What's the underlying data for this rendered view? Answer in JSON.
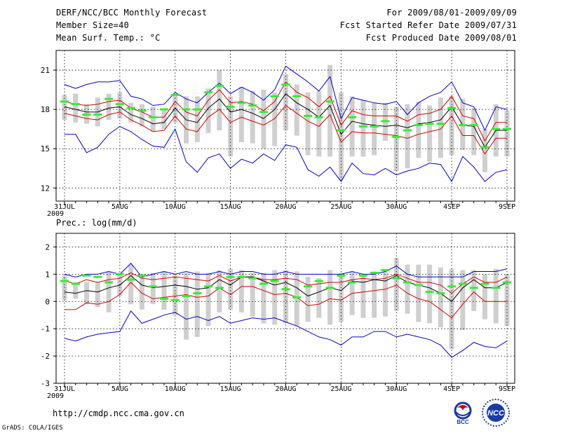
{
  "header": {
    "title": "DERF/NCC/BCC Monthly Forecast",
    "member_size": "Member Size=40",
    "variable": "Mean Surf. Temp.: °C",
    "forecast_period": "For 2009/08/01-2009/09/09",
    "start_date": "Fcst Started Refer Date 2009/07/31",
    "produced_date": "Fcst Produced Date 2009/08/01"
  },
  "footer": {
    "url": "http://cmdp.ncc.cma.gov.cn",
    "credit": "GrADS: COLA/IGES",
    "logo_left": "BCC",
    "logo_right": "NCC"
  },
  "colors": {
    "envelope": "#0000cc",
    "spread": "#d40000",
    "mean": "#000000",
    "obs": "#33ee33",
    "box": "#cfcfcf"
  },
  "chart_data": [
    {
      "type": "line",
      "title": "Mean Surf. Temp.: °C",
      "x_tick_labels": [
        "31JUL",
        "5AUG",
        "10AUG",
        "15AUG",
        "20AUG",
        "25AUG",
        "30AUG",
        "4SEP",
        "9SEP"
      ],
      "x_tick_index": [
        0,
        5,
        10,
        15,
        20,
        25,
        30,
        35,
        40
      ],
      "year_label": "2009",
      "ylim": [
        11,
        22.5
      ],
      "y_ticks": [
        12,
        15,
        18,
        21
      ],
      "grid": true,
      "series": [
        {
          "name": "max",
          "values": [
            19.9,
            19.6,
            19.9,
            20.1,
            20.1,
            20.2,
            19.0,
            18.8,
            18.3,
            18.4,
            19.3,
            18.8,
            18.5,
            19.3,
            20.0,
            19.2,
            19.7,
            19.3,
            18.7,
            19.5,
            21.3,
            20.7,
            20.1,
            19.4,
            20.5,
            17.3,
            18.9,
            18.7,
            18.5,
            18.4,
            18.6,
            17.6,
            18.5,
            19.0,
            19.3,
            20.1,
            18.5,
            18.2,
            16.4,
            18.2,
            18.0
          ]
        },
        {
          "name": "upper",
          "values": [
            18.6,
            18.4,
            18.3,
            18.4,
            18.6,
            18.7,
            18.1,
            17.8,
            17.4,
            17.4,
            18.6,
            17.8,
            17.5,
            18.7,
            19.5,
            18.5,
            18.6,
            18.4,
            17.9,
            18.6,
            20.1,
            19.3,
            18.9,
            18.2,
            19.0,
            16.8,
            17.9,
            17.6,
            17.5,
            17.5,
            17.5,
            17.1,
            17.6,
            17.7,
            18.0,
            19.0,
            17.5,
            17.3,
            15.6,
            17.0,
            17.0
          ]
        },
        {
          "name": "mean",
          "values": [
            18.2,
            18.0,
            17.8,
            17.8,
            18.1,
            18.2,
            17.6,
            17.3,
            16.9,
            17.0,
            18.1,
            17.2,
            17.0,
            18.1,
            18.8,
            17.8,
            18.0,
            17.7,
            17.3,
            18.0,
            19.2,
            18.5,
            18.0,
            17.4,
            18.3,
            16.1,
            17.1,
            16.9,
            16.8,
            16.7,
            16.8,
            16.6,
            16.9,
            17.0,
            17.2,
            18.2,
            16.8,
            16.7,
            15.1,
            16.4,
            16.4
          ]
        },
        {
          "name": "lower",
          "values": [
            17.7,
            17.5,
            17.3,
            17.2,
            17.6,
            17.8,
            17.2,
            16.8,
            16.3,
            16.4,
            17.5,
            16.5,
            16.3,
            17.4,
            18.0,
            17.0,
            17.4,
            17.1,
            16.8,
            17.3,
            18.3,
            17.7,
            17.1,
            16.7,
            17.6,
            15.5,
            16.3,
            16.2,
            16.2,
            16.1,
            16.0,
            15.8,
            16.1,
            16.3,
            16.5,
            17.5,
            16.0,
            16.0,
            14.6,
            15.8,
            15.8
          ]
        },
        {
          "name": "min",
          "values": [
            16.1,
            16.1,
            14.7,
            15.1,
            16.1,
            16.7,
            16.3,
            15.7,
            15.2,
            15.1,
            16.5,
            14.0,
            13.2,
            14.3,
            14.6,
            13.5,
            14.2,
            13.9,
            14.6,
            14.1,
            15.3,
            15.1,
            13.4,
            12.9,
            13.6,
            12.5,
            13.9,
            13.1,
            13.0,
            13.5,
            13.0,
            13.3,
            13.5,
            13.9,
            13.8,
            12.5,
            14.4,
            13.6,
            12.5,
            13.2,
            13.4
          ]
        },
        {
          "name": "box_high",
          "values": [
            19.1,
            19.2,
            18.4,
            18.9,
            19.2,
            19.3,
            18.5,
            18.4,
            18.2,
            18.0,
            19.2,
            19.0,
            19.0,
            19.6,
            21.0,
            19.0,
            19.7,
            19.4,
            19.5,
            19.3,
            20.7,
            19.9,
            19.3,
            19.4,
            21.4,
            19.3,
            19.0,
            18.7,
            18.5,
            18.5,
            18.2,
            18.4,
            18.6,
            18.3,
            18.9,
            19.0,
            18.8,
            18.1,
            16.5,
            18.4,
            17.9
          ]
        },
        {
          "name": "box_low",
          "values": [
            17.2,
            17.0,
            16.9,
            16.7,
            17.2,
            17.3,
            17.0,
            16.7,
            16.3,
            16.5,
            17.0,
            15.4,
            15.5,
            16.2,
            16.4,
            14.4,
            15.5,
            15.4,
            15.0,
            15.2,
            16.4,
            16.0,
            14.5,
            14.4,
            14.4,
            12.6,
            14.4,
            14.4,
            14.5,
            15.6,
            13.3,
            13.5,
            14.3,
            14.0,
            14.3,
            14.5,
            14.9,
            14.5,
            13.2,
            14.4,
            14.4
          ]
        },
        {
          "name": "observed",
          "values": [
            18.6,
            18.4,
            17.6,
            17.6,
            18.8,
            18.4,
            18.1,
            17.9,
            17.4,
            18.0,
            19.1,
            18.0,
            18.0,
            19.3,
            19.8,
            18.2,
            18.5,
            18.3,
            17.8,
            19.0,
            19.9,
            19.0,
            17.5,
            17.4,
            18.6,
            16.4,
            17.4,
            16.7,
            16.7,
            17.1,
            15.9,
            16.4,
            16.8,
            16.9,
            16.9,
            18.1,
            16.8,
            16.8,
            15.1,
            16.5,
            16.5
          ]
        }
      ]
    },
    {
      "type": "line",
      "title": "Prec.: log(mm/d)",
      "x_tick_labels": [
        "31JUL",
        "5AUG",
        "10AUG",
        "15AUG",
        "20AUG",
        "25AUG",
        "30AUG",
        "4SEP",
        "9SEP"
      ],
      "x_tick_index": [
        0,
        5,
        10,
        15,
        20,
        25,
        30,
        35,
        40
      ],
      "year_label": "2009",
      "ylim": [
        -3,
        2.5
      ],
      "y_ticks": [
        -3,
        -2,
        -1,
        0,
        1,
        2
      ],
      "grid": true,
      "series": [
        {
          "name": "max",
          "values": [
            1.0,
            0.9,
            1.0,
            1.0,
            1.1,
            1.0,
            1.4,
            0.9,
            1.0,
            1.1,
            1.0,
            1.1,
            1.0,
            1.0,
            1.1,
            1.0,
            1.1,
            1.1,
            1.0,
            1.0,
            1.1,
            1.0,
            1.0,
            1.0,
            1.0,
            1.0,
            1.1,
            1.0,
            1.0,
            1.1,
            1.3,
            1.0,
            0.9,
            0.9,
            0.9,
            0.9,
            0.9,
            1.1,
            1.1,
            1.1,
            1.2
          ]
        },
        {
          "name": "upper",
          "values": [
            0.75,
            0.65,
            0.8,
            0.7,
            0.8,
            0.85,
            1.05,
            0.85,
            0.8,
            0.85,
            0.9,
            0.85,
            0.8,
            0.75,
            0.95,
            0.75,
            0.9,
            0.9,
            0.8,
            0.8,
            0.85,
            0.8,
            0.6,
            0.65,
            0.7,
            0.7,
            0.8,
            0.85,
            0.8,
            0.85,
            1.0,
            0.85,
            0.7,
            0.7,
            0.6,
            0.3,
            0.65,
            0.9,
            0.7,
            0.7,
            0.9
          ]
        },
        {
          "name": "mean",
          "values": [
            0.35,
            0.3,
            0.4,
            0.35,
            0.5,
            0.6,
            0.95,
            0.6,
            0.5,
            0.55,
            0.6,
            0.55,
            0.45,
            0.5,
            0.8,
            0.6,
            0.9,
            0.9,
            0.75,
            0.6,
            0.7,
            0.5,
            0.2,
            0.35,
            0.5,
            0.4,
            0.75,
            0.7,
            0.8,
            0.75,
            0.95,
            0.7,
            0.6,
            0.5,
            0.3,
            0.0,
            0.5,
            0.8,
            0.5,
            0.5,
            0.7
          ]
        },
        {
          "name": "lower",
          "values": [
            -0.3,
            -0.3,
            -0.05,
            -0.1,
            0.0,
            0.25,
            0.7,
            0.3,
            0.1,
            0.15,
            0.2,
            0.25,
            0.15,
            0.2,
            0.5,
            0.25,
            0.55,
            0.55,
            0.4,
            0.25,
            0.3,
            0.15,
            -0.15,
            -0.1,
            0.1,
            0.05,
            0.3,
            0.35,
            0.4,
            0.45,
            0.6,
            0.3,
            0.1,
            0.0,
            -0.3,
            -0.6,
            -0.1,
            0.35,
            0.0,
            0.0,
            0.0
          ]
        },
        {
          "name": "min",
          "values": [
            -1.35,
            -1.45,
            -1.3,
            -1.2,
            -1.15,
            -1.1,
            -0.35,
            -0.8,
            -0.65,
            -0.5,
            -0.4,
            -0.65,
            -0.55,
            -0.7,
            -0.55,
            -0.8,
            -0.7,
            -0.6,
            -0.65,
            -0.6,
            -0.75,
            -0.9,
            -1.1,
            -1.3,
            -1.4,
            -1.6,
            -1.3,
            -1.3,
            -1.1,
            -1.1,
            -1.3,
            -1.2,
            -1.3,
            -1.4,
            -1.6,
            -2.05,
            -1.8,
            -1.5,
            -1.65,
            -1.7,
            -1.45
          ]
        },
        {
          "name": "box_high",
          "values": [
            0.95,
            0.7,
            0.7,
            0.7,
            1.1,
            1.05,
            1.35,
            0.9,
            1.05,
            1.1,
            0.95,
            1.05,
            1.1,
            1.05,
            1.15,
            1.2,
            1.15,
            1.05,
            1.05,
            1.15,
            1.15,
            1.1,
            0.9,
            0.85,
            1.15,
            1.05,
            1.1,
            0.95,
            1.1,
            1.1,
            1.6,
            1.35,
            1.35,
            1.35,
            1.25,
            1.2,
            1.15,
            1.15,
            1.0,
            1.2,
            1.0
          ]
        },
        {
          "name": "box_low",
          "values": [
            0.05,
            0.1,
            -0.1,
            -0.2,
            -0.4,
            0.2,
            -0.1,
            -0.3,
            -0.1,
            -0.3,
            -0.5,
            -1.4,
            -1.3,
            -0.9,
            -0.4,
            -0.3,
            -0.4,
            -0.55,
            -0.8,
            -0.85,
            -0.8,
            -0.9,
            -0.75,
            -0.6,
            -0.85,
            -0.75,
            -0.5,
            -0.6,
            -0.6,
            -0.55,
            -0.35,
            -0.45,
            -0.75,
            -0.8,
            -0.95,
            -1.75,
            -1.05,
            -0.35,
            -0.65,
            -0.8,
            -0.9
          ]
        },
        {
          "name": "observed",
          "values": [
            0.75,
            0.65,
            0.95,
            0.9,
            0.7,
            1.0,
            0.8,
            0.95,
            0.55,
            0.1,
            0.05,
            0.2,
            0.3,
            0.55,
            0.5,
            0.9,
            0.9,
            0.85,
            0.65,
            0.75,
            0.45,
            0.15,
            0.55,
            0.75,
            0.5,
            0.95,
            0.7,
            0.95,
            1.05,
            1.15,
            0.85,
            0.7,
            0.6,
            0.35,
            0.3,
            0.55,
            0.65,
            0.5,
            0.65,
            0.5,
            0.7
          ]
        }
      ]
    }
  ]
}
